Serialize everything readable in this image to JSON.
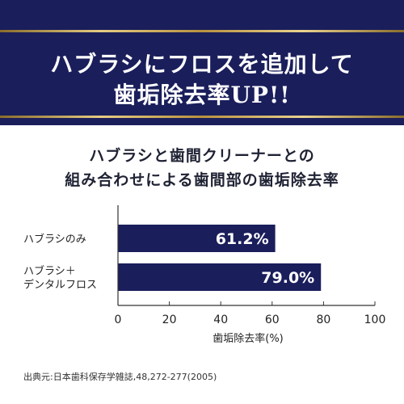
{
  "banner": {
    "line1": "ハブラシにフロスを追加して",
    "line2": "歯垢除去率UP!!"
  },
  "subtitle": {
    "line1": "ハブラシと歯間クリーナーとの",
    "line2": "組み合わせによる歯間部の歯垢除去率"
  },
  "colors": {
    "banner": "#1a1e5b",
    "bar": "#1a1e5b",
    "gold": "#c9a553"
  },
  "chart_data": {
    "type": "bar",
    "orientation": "horizontal",
    "categories": [
      [
        "ハブラシのみ"
      ],
      [
        "ハブラシ＋",
        "デンタルフロス"
      ]
    ],
    "values": [
      61.2,
      79.0
    ],
    "value_labels": [
      "61.2%",
      "79.0%"
    ],
    "xlabel": "歯垢除去率(%)",
    "xlim": [
      0,
      100
    ],
    "xticks": [
      "0",
      "20",
      "40",
      "60",
      "80",
      "100"
    ],
    "grid": false,
    "legend": "none"
  },
  "source": "出典元:日本歯科保存学雑誌,48,272-277(2005)"
}
